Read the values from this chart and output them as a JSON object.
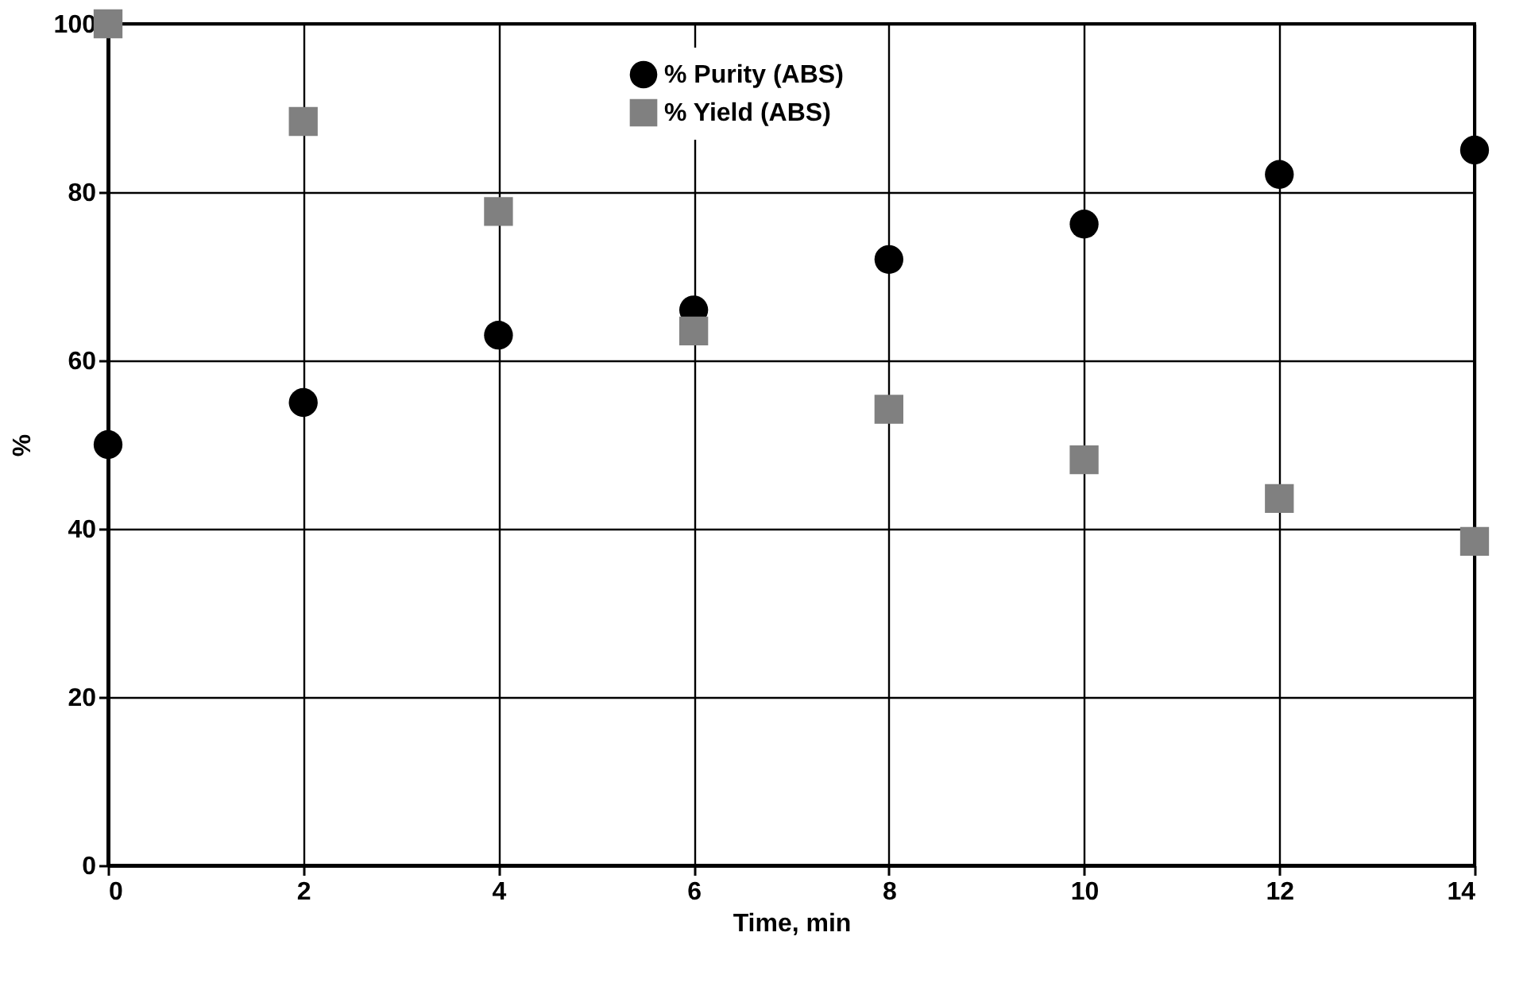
{
  "chart_data": {
    "type": "scatter",
    "xlabel": "Time, min",
    "ylabel": "%",
    "x": [
      0,
      2,
      4,
      6,
      8,
      10,
      12,
      14
    ],
    "series": [
      {
        "name": "% Purity (ABS)",
        "color": "#000000",
        "marker": "circle",
        "values": [
          50,
          55,
          63,
          66,
          72,
          76.2,
          82.1,
          85
        ]
      },
      {
        "name": "% Yield (ABS)",
        "color": "#808080",
        "marker": "square",
        "values": [
          100,
          88.4,
          77.7,
          63.5,
          54.2,
          48.2,
          43.6,
          38.5
        ]
      }
    ],
    "xlim": [
      0,
      14
    ],
    "xticks": [
      0,
      2,
      4,
      6,
      8,
      10,
      12,
      14
    ],
    "ylim": [
      0,
      100
    ],
    "yticks": [
      0,
      20,
      40,
      60,
      80,
      100
    ],
    "grid": true,
    "legend": "top"
  }
}
